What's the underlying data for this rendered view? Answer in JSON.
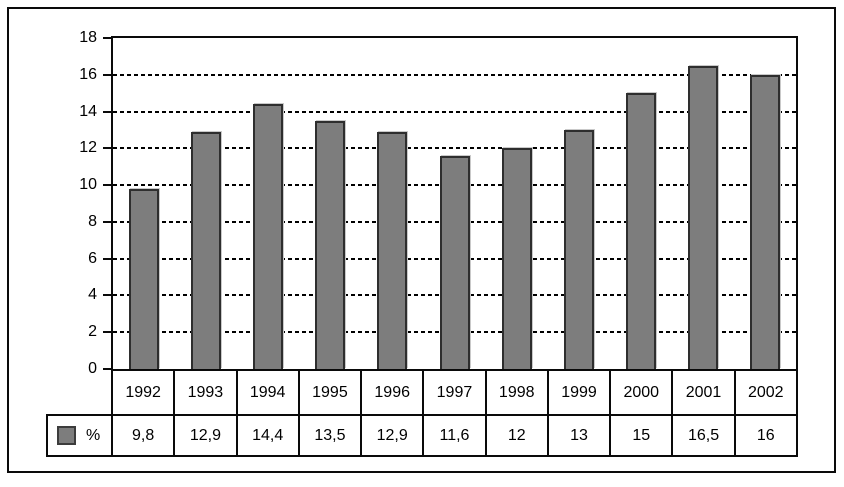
{
  "colors": {
    "bar_fill": "#7d7d7d",
    "bar_border": "#2e2e2e",
    "frame": "#0a0a0a",
    "background": "#ffffff"
  },
  "legend": {
    "label": "%"
  },
  "chart_data": {
    "type": "bar",
    "title": "",
    "xlabel": "",
    "ylabel": "",
    "categories": [
      "1992",
      "1993",
      "1994",
      "1995",
      "1996",
      "1997",
      "1998",
      "1999",
      "2000",
      "2001",
      "2002"
    ],
    "values": [
      9.8,
      12.9,
      14.4,
      13.5,
      12.9,
      11.6,
      12,
      13,
      15,
      16.5,
      16
    ],
    "value_labels": [
      "9,8",
      "12,9",
      "14,4",
      "13,5",
      "12,9",
      "11,6",
      "12",
      "13",
      "15",
      "16,5",
      "16"
    ],
    "series_name": "%",
    "ylim": [
      0,
      18
    ],
    "ytick_step": 2,
    "ytick_labels": [
      "0",
      "2",
      "4",
      "6",
      "8",
      "10",
      "12",
      "14",
      "16",
      "18"
    ],
    "grid": "horizontal-dashed",
    "legend_position": "bottom-left-table-cell",
    "data_table_shown": true
  }
}
